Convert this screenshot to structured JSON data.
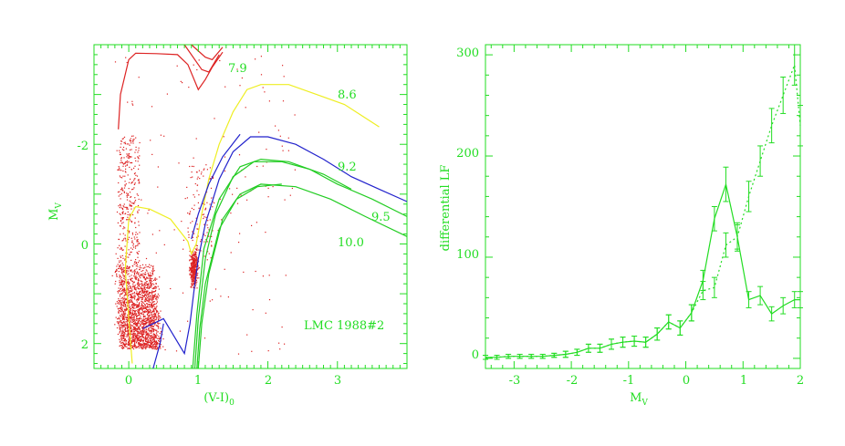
{
  "colors": {
    "frame": "#22dd22",
    "text": "#22dd22",
    "stars": "#dd2222",
    "iso_7_9": "#dd2222",
    "iso_8_6": "#eeee22",
    "iso_9_2": "#2222cc",
    "iso_9_5": "#22cc22",
    "iso_10_0": "#22cc22"
  },
  "chart_data": [
    {
      "type": "scatter",
      "title": "",
      "xlabel": "(V-I)",
      "xlabel_subscript": "0",
      "ylabel": "M",
      "ylabel_subscript": "V",
      "xlim": [
        -0.5,
        4.0
      ],
      "ylim": [
        2.5,
        -4.0
      ],
      "y_inverted": true,
      "xticks": [
        "0",
        "1",
        "2",
        "3"
      ],
      "yticks": [
        "-2",
        "0",
        "2"
      ],
      "annotation": "LMC 1988#2",
      "isochrones": [
        {
          "label": "7.9",
          "color_key": "iso_7_9",
          "points": [
            [
              -0.15,
              -2.3
            ],
            [
              -0.12,
              -3.0
            ],
            [
              0.0,
              -3.7
            ],
            [
              0.1,
              -3.83
            ],
            [
              0.4,
              -3.82
            ],
            [
              0.7,
              -3.8
            ],
            [
              0.85,
              -3.6
            ],
            [
              1.0,
              -3.1
            ],
            [
              1.1,
              -3.3
            ],
            [
              1.2,
              -3.55
            ],
            [
              1.35,
              -3.85
            ]
          ]
        },
        {
          "label": "",
          "color_key": "iso_7_9",
          "points": [
            [
              0.8,
              -4.0
            ],
            [
              1.05,
              -3.5
            ],
            [
              1.15,
              -3.45
            ],
            [
              1.3,
              -3.8
            ]
          ]
        },
        {
          "label": "",
          "color_key": "iso_7_9",
          "points": [
            [
              0.9,
              -4.0
            ],
            [
              1.1,
              -3.75
            ],
            [
              1.2,
              -3.7
            ],
            [
              1.35,
              -3.95
            ]
          ]
        },
        {
          "label": "8.6",
          "color_key": "iso_8_6",
          "points": [
            [
              0.05,
              2.4
            ],
            [
              0.0,
              1.5
            ],
            [
              -0.05,
              0.5
            ],
            [
              0.0,
              -0.5
            ],
            [
              0.1,
              -0.75
            ],
            [
              0.3,
              -0.7
            ],
            [
              0.6,
              -0.5
            ],
            [
              0.85,
              -0.05
            ],
            [
              0.9,
              0.2
            ],
            [
              0.97,
              0.0
            ],
            [
              1.05,
              -0.6
            ],
            [
              1.15,
              -1.3
            ],
            [
              1.3,
              -2.0
            ],
            [
              1.5,
              -2.65
            ],
            [
              1.7,
              -3.1
            ],
            [
              1.9,
              -3.2
            ],
            [
              2.3,
              -3.2
            ],
            [
              2.7,
              -3.0
            ],
            [
              3.1,
              -2.8
            ],
            [
              3.6,
              -2.35
            ]
          ]
        },
        {
          "label": "9.2",
          "color_key": "iso_9_2",
          "points": [
            [
              0.2,
              1.7
            ],
            [
              0.5,
              1.5
            ],
            [
              0.8,
              2.2
            ],
            [
              0.88,
              1.6
            ],
            [
              0.95,
              0.8
            ],
            [
              1.0,
              0.3
            ],
            [
              1.1,
              -0.4
            ],
            [
              1.3,
              -1.3
            ],
            [
              1.5,
              -1.85
            ],
            [
              1.75,
              -2.15
            ],
            [
              2.0,
              -2.15
            ],
            [
              2.4,
              -2.0
            ],
            [
              2.8,
              -1.7
            ],
            [
              3.2,
              -1.35
            ],
            [
              3.6,
              -1.1
            ],
            [
              4.0,
              -0.85
            ]
          ]
        },
        {
          "label": "",
          "color_key": "iso_9_2",
          "points": [
            [
              0.9,
              -0.1
            ],
            [
              1.0,
              -0.6
            ],
            [
              1.15,
              -1.2
            ],
            [
              1.35,
              -1.75
            ],
            [
              1.6,
              -2.2
            ]
          ]
        },
        {
          "label": "",
          "color_key": "iso_9_2",
          "points": [
            [
              0.35,
              2.5
            ],
            [
              0.45,
              2.0
            ],
            [
              0.5,
              1.6
            ]
          ]
        },
        {
          "label": "9.5",
          "color_key": "iso_9_5",
          "points": [
            [
              0.95,
              2.5
            ],
            [
              1.0,
              1.5
            ],
            [
              1.1,
              0.3
            ],
            [
              1.25,
              -0.6
            ],
            [
              1.5,
              -1.35
            ],
            [
              1.8,
              -1.65
            ],
            [
              2.2,
              -1.65
            ],
            [
              2.6,
              -1.5
            ],
            [
              3.0,
              -1.2
            ],
            [
              3.5,
              -0.9
            ],
            [
              4.0,
              -0.55
            ]
          ]
        },
        {
          "label": "",
          "color_key": "iso_9_5",
          "points": [
            [
              0.92,
              2.5
            ],
            [
              0.98,
              1.4
            ],
            [
              1.08,
              0.1
            ],
            [
              1.3,
              -0.9
            ],
            [
              1.6,
              -1.55
            ],
            [
              1.9,
              -1.7
            ],
            [
              2.3,
              -1.65
            ],
            [
              2.8,
              -1.4
            ],
            [
              3.2,
              -1.1
            ]
          ]
        },
        {
          "label": "10.0",
          "color_key": "iso_10_0",
          "points": [
            [
              1.0,
              2.5
            ],
            [
              1.05,
              1.6
            ],
            [
              1.15,
              0.6
            ],
            [
              1.35,
              -0.5
            ],
            [
              1.6,
              -1.0
            ],
            [
              1.9,
              -1.2
            ],
            [
              2.4,
              -1.15
            ],
            [
              2.9,
              -0.9
            ],
            [
              3.4,
              -0.55
            ],
            [
              4.0,
              -0.15
            ]
          ]
        },
        {
          "label": "",
          "color_key": "iso_10_0",
          "points": [
            [
              0.98,
              2.5
            ],
            [
              1.02,
              1.7
            ],
            [
              1.1,
              0.8
            ],
            [
              1.3,
              -0.3
            ],
            [
              1.55,
              -0.9
            ],
            [
              1.85,
              -1.15
            ],
            [
              2.2,
              -1.2
            ]
          ]
        }
      ]
    },
    {
      "type": "line",
      "title": "",
      "xlabel": "M",
      "xlabel_subscript": "V",
      "ylabel": "differential LF",
      "xlim": [
        -3.5,
        2.0
      ],
      "ylim": [
        -10,
        310
      ],
      "xticks": [
        "-3",
        "-2",
        "-1",
        "0",
        "1",
        "2"
      ],
      "yticks": [
        "0",
        "100",
        "200",
        "300"
      ],
      "series": [
        {
          "style": "solid",
          "x": [
            -3.5,
            -3.3,
            -3.1,
            -2.9,
            -2.7,
            -2.5,
            -2.3,
            -2.1,
            -1.9,
            -1.7,
            -1.5,
            -1.3,
            -1.1,
            -0.9,
            -0.7,
            -0.5,
            -0.3,
            -0.1,
            0.1,
            0.3,
            0.5,
            0.7,
            0.9,
            1.1,
            1.3,
            1.5,
            1.7,
            1.9,
            2.0
          ],
          "y": [
            1,
            1,
            2,
            2,
            2,
            2,
            3,
            4,
            6,
            10,
            10,
            14,
            16,
            17,
            16,
            24,
            36,
            30,
            45,
            77,
            138,
            172,
            120,
            58,
            62,
            44,
            52,
            58,
            58
          ],
          "err": [
            2,
            2,
            2,
            2,
            2,
            2,
            2,
            3,
            3,
            4,
            4,
            5,
            5,
            5,
            5,
            6,
            7,
            7,
            8,
            10,
            12,
            17,
            14,
            8,
            9,
            7,
            8,
            8,
            8
          ]
        },
        {
          "style": "dotted",
          "x": [
            -3.5,
            -3.3,
            -3.1,
            -2.9,
            -2.7,
            -2.5,
            -2.3,
            -2.1,
            -1.9,
            -1.7,
            -1.5,
            -1.3,
            -1.1,
            -0.9,
            -0.7,
            -0.5,
            -0.3,
            -0.1,
            0.1,
            0.3,
            0.5,
            0.7,
            0.9,
            1.1,
            1.3,
            1.5,
            1.7,
            1.9,
            2.0
          ],
          "y": [
            1,
            1,
            2,
            2,
            2,
            2,
            3,
            4,
            6,
            10,
            10,
            14,
            16,
            17,
            16,
            24,
            36,
            30,
            45,
            67,
            70,
            112,
            120,
            160,
            195,
            230,
            260,
            290,
            230
          ],
          "err": [
            2,
            2,
            2,
            2,
            2,
            2,
            2,
            3,
            3,
            4,
            4,
            5,
            5,
            5,
            5,
            6,
            7,
            7,
            8,
            9,
            10,
            12,
            12,
            15,
            15,
            17,
            18,
            20,
            20
          ]
        }
      ]
    }
  ]
}
